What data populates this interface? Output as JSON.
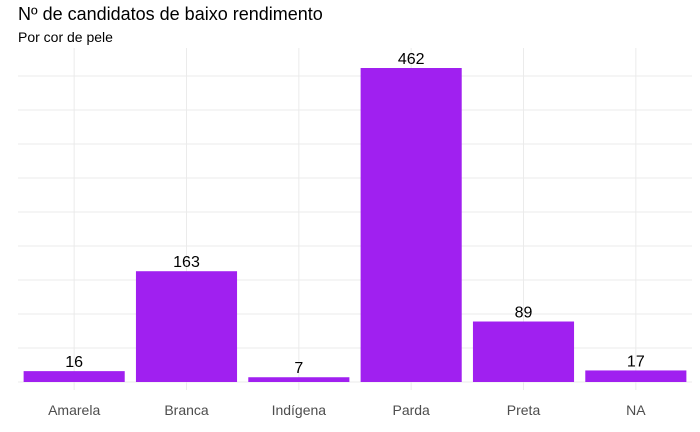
{
  "chart_data": {
    "type": "bar",
    "title": "Nº de candidatos de baixo rendimento",
    "subtitle": "Por cor de pele",
    "xlabel": "",
    "ylabel": "",
    "categories": [
      "Amarela",
      "Branca",
      "Indígena",
      "Parda",
      "Preta",
      "NA"
    ],
    "values": [
      16,
      163,
      7,
      462,
      89,
      17
    ],
    "ylim": [
      0,
      462
    ],
    "grid": true,
    "bar_color": "#A020F0",
    "grid_color": "#EBEBEB"
  }
}
